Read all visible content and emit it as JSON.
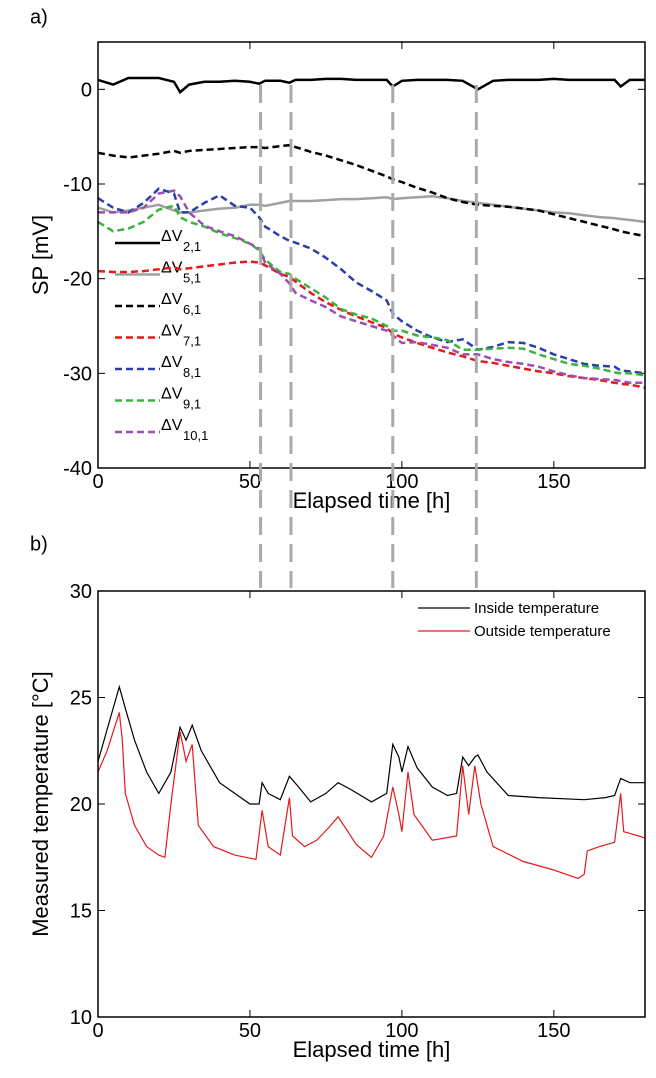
{
  "chart_data": [
    {
      "type": "line",
      "panel_label": "a)",
      "x_label": "Elapsed time [h]",
      "y_label": "SP [mV]",
      "xlim": [
        0,
        180
      ],
      "xticks": [
        0,
        50,
        100,
        150
      ],
      "ylim": [
        -40,
        5
      ],
      "yticks": [
        -40,
        -30,
        -20,
        -10,
        0
      ],
      "legend": "left",
      "vlines": [
        53.5,
        63.5,
        97,
        124.5
      ],
      "vline_color": "#aaaaaa",
      "x": [
        0,
        5,
        10,
        15,
        20,
        25,
        27,
        30,
        35,
        40,
        45,
        50,
        53,
        55,
        60,
        63,
        65,
        70,
        75,
        80,
        85,
        90,
        95,
        97,
        100,
        105,
        110,
        115,
        120,
        125,
        130,
        135,
        140,
        145,
        150,
        155,
        160,
        165,
        170,
        172,
        175,
        180
      ],
      "series": [
        {
          "name": "ΔV",
          "name_subscript": "2,1",
          "color": "#000000",
          "linestyle": "solid",
          "values": [
            1,
            0.5,
            1.2,
            1.2,
            1.2,
            0.8,
            -0.3,
            0.5,
            0.8,
            0.8,
            0.9,
            0.8,
            0.6,
            0.9,
            0.9,
            0.7,
            1,
            1,
            1.1,
            1.1,
            1,
            1,
            1,
            0.3,
            0.9,
            1,
            1,
            1,
            0.9,
            0,
            0.9,
            1,
            1,
            1,
            1.1,
            1,
            1,
            1,
            1,
            0.3,
            1,
            1
          ]
        },
        {
          "name": "ΔV",
          "name_subscript": "5,1",
          "color": "#a0a0a0",
          "linestyle": "solid",
          "values": [
            -12.5,
            -13,
            -12.8,
            -12.5,
            -12.2,
            -12.8,
            -13,
            -13,
            -12.8,
            -12.6,
            -12.5,
            -12.2,
            -12.2,
            -12.3,
            -12,
            -11.8,
            -11.8,
            -11.8,
            -11.7,
            -11.6,
            -11.6,
            -11.5,
            -11.4,
            -11.6,
            -11.5,
            -11.4,
            -11.3,
            -11.5,
            -11.8,
            -12,
            -12.2,
            -12.4,
            -12.6,
            -12.8,
            -13,
            -13.1,
            -13.3,
            -13.5,
            -13.6,
            -13.7,
            -13.8,
            -14
          ]
        },
        {
          "name": "ΔV",
          "name_subscript": "6,1",
          "color": "#000000",
          "linestyle": "dashed",
          "values": [
            -6.7,
            -7,
            -7.2,
            -7,
            -6.8,
            -6.5,
            -6.7,
            -6.5,
            -6.4,
            -6.3,
            -6.2,
            -6.1,
            -6.1,
            -6.2,
            -6,
            -5.9,
            -6.1,
            -6.6,
            -7,
            -7.5,
            -8,
            -8.6,
            -9.2,
            -9.5,
            -9.8,
            -10.4,
            -10.9,
            -11.5,
            -11.9,
            -12.2,
            -12.3,
            -12.4,
            -12.6,
            -12.8,
            -13.2,
            -13.6,
            -14,
            -14.4,
            -14.8,
            -15,
            -15.2,
            -15.5
          ]
        },
        {
          "name": "ΔV",
          "name_subscript": "7,1",
          "color": "#e41a1c",
          "linestyle": "dashed",
          "values": [
            -19.2,
            -19.3,
            -19.3,
            -19.2,
            -19,
            -18.8,
            -19,
            -18.9,
            -18.7,
            -18.5,
            -18.3,
            -18.2,
            -18.3,
            -18.6,
            -19.5,
            -19.8,
            -20.3,
            -21.5,
            -22.5,
            -23.3,
            -24,
            -24.6,
            -25.2,
            -25.8,
            -26.2,
            -26.8,
            -27.3,
            -27.8,
            -28.2,
            -28.7,
            -28.9,
            -29.2,
            -29.5,
            -29.8,
            -30,
            -30.3,
            -30.5,
            -30.7,
            -31,
            -31.1,
            -31.2,
            -31.5
          ]
        },
        {
          "name": "ΔV",
          "name_subscript": "8,1",
          "color": "#2b3fa8",
          "linestyle": "dashed",
          "values": [
            -11.5,
            -12.5,
            -13,
            -12,
            -10.5,
            -11,
            -13,
            -13,
            -12,
            -11.2,
            -12.3,
            -12.5,
            -13.5,
            -14.5,
            -15.5,
            -16,
            -16.2,
            -16.8,
            -17.8,
            -19,
            -20.4,
            -21.3,
            -22.3,
            -23.7,
            -24.5,
            -25.5,
            -26.2,
            -26.7,
            -26.4,
            -27.5,
            -27.2,
            -26.7,
            -26.8,
            -27.3,
            -28,
            -28.5,
            -29,
            -29.2,
            -29.3,
            -29.7,
            -29.8,
            -30
          ]
        },
        {
          "name": "ΔV",
          "name_subscript": "9,1",
          "color": "#3cb33c",
          "linestyle": "dashed",
          "values": [
            -14,
            -15,
            -14.7,
            -14,
            -12.7,
            -12.3,
            -13.5,
            -14,
            -14.5,
            -15.2,
            -15.7,
            -16.3,
            -17,
            -18,
            -19.3,
            -19.5,
            -20,
            -21,
            -22,
            -23.2,
            -23.8,
            -24.2,
            -25,
            -25.5,
            -25.5,
            -26,
            -26.2,
            -26.5,
            -27.5,
            -27.5,
            -27.4,
            -27.3,
            -27.4,
            -28,
            -28.5,
            -29,
            -29.2,
            -29.5,
            -29.9,
            -30,
            -30,
            -30.2
          ]
        },
        {
          "name": "ΔV",
          "name_subscript": "10,1",
          "color": "#9b4fb0",
          "linestyle": "dashed",
          "values": [
            -13,
            -13,
            -13,
            -12.5,
            -11,
            -10.7,
            -11.3,
            -13,
            -14.4,
            -15,
            -15.5,
            -16.3,
            -16.8,
            -18.3,
            -19.5,
            -20.5,
            -21.5,
            -22.3,
            -23,
            -24,
            -24.5,
            -25,
            -25.5,
            -26,
            -26.8,
            -26.7,
            -27,
            -27.3,
            -28,
            -28,
            -28.5,
            -28.8,
            -29,
            -29.3,
            -29.8,
            -30.2,
            -30.5,
            -30.6,
            -30.7,
            -30.8,
            -31,
            -31
          ]
        }
      ]
    },
    {
      "type": "line",
      "panel_label": "b)",
      "x_label": "Elapsed time [h]",
      "y_label": "Measured temperature [°C]",
      "xlim": [
        0,
        180
      ],
      "xticks": [
        0,
        50,
        100,
        150
      ],
      "ylim": [
        10,
        30
      ],
      "yticks": [
        10,
        15,
        20,
        25,
        30
      ],
      "legend": "upper right",
      "series": [
        {
          "name": "Inside temperature",
          "color": "#000000",
          "linestyle": "solid",
          "x": [
            0,
            3,
            7,
            9,
            12,
            16,
            20,
            24,
            27,
            29,
            31,
            34,
            40,
            45,
            50,
            53,
            54,
            56,
            60,
            63,
            66,
            70,
            75,
            79,
            83,
            90,
            95,
            97,
            99,
            100,
            102,
            105,
            110,
            115,
            118,
            120,
            122,
            124,
            125,
            128,
            135,
            145,
            160,
            167,
            170,
            172,
            175,
            180
          ],
          "values": [
            22,
            23.5,
            25.5,
            24.5,
            23,
            21.5,
            20.5,
            21.5,
            23.6,
            23,
            23.7,
            22.5,
            21,
            20.5,
            20,
            20,
            21,
            20.5,
            20.2,
            21.3,
            20.8,
            20.1,
            20.5,
            21,
            20.7,
            20.1,
            20.5,
            22.8,
            22.2,
            21.5,
            22.7,
            21.7,
            20.8,
            20.4,
            20.5,
            22.2,
            21.8,
            22.2,
            22.3,
            21.5,
            20.4,
            20.3,
            20.2,
            20.3,
            20.4,
            21.2,
            21,
            21
          ]
        },
        {
          "name": "Outside temperature",
          "color": "#e41a1c",
          "linestyle": "solid",
          "x": [
            0,
            3,
            7,
            8,
            9,
            12,
            16,
            20,
            22,
            24,
            27,
            29,
            31,
            33,
            38,
            45,
            52,
            54,
            56,
            60,
            63,
            64,
            68,
            72,
            76,
            79,
            85,
            90,
            94,
            97,
            99,
            100,
            102,
            104,
            110,
            118,
            120,
            122,
            124,
            126,
            130,
            140,
            150,
            158,
            160,
            161,
            165,
            170,
            172,
            173,
            178,
            180
          ],
          "values": [
            21.5,
            22.5,
            24.3,
            23,
            20.5,
            19,
            18,
            17.6,
            17.5,
            20,
            23.4,
            22,
            22.8,
            19,
            18,
            17.6,
            17.4,
            19.7,
            18,
            17.6,
            20.3,
            18.5,
            18,
            18.3,
            18.9,
            19.4,
            18.1,
            17.5,
            18.5,
            20.8,
            19.5,
            18.7,
            21.5,
            19.5,
            18.3,
            18.5,
            21.8,
            19.5,
            21.8,
            20,
            18,
            17.3,
            16.9,
            16.5,
            16.7,
            17.8,
            18,
            18.2,
            20.5,
            18.7,
            18.5,
            18.4
          ]
        }
      ]
    }
  ]
}
